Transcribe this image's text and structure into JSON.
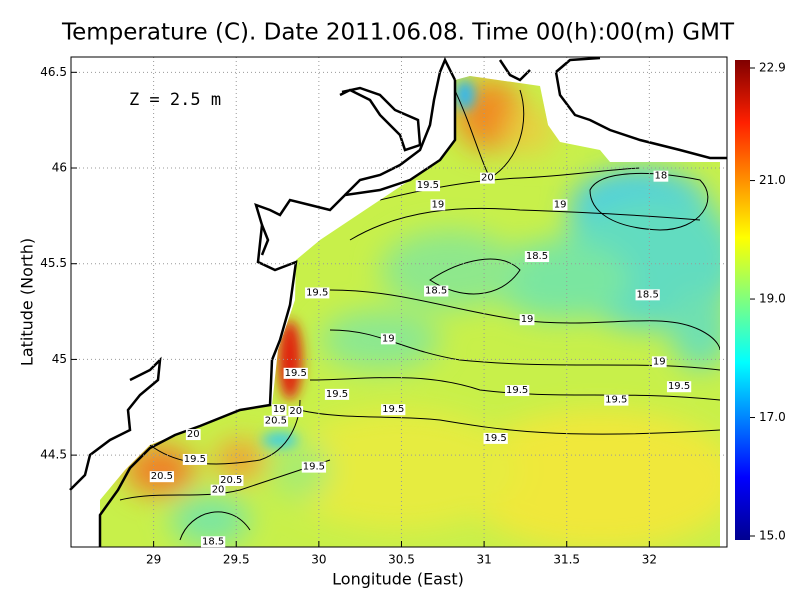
{
  "chart_data": {
    "type": "map",
    "title": "Temperature (C). Date 2011.06.08. Time 00(h):00(m) GMT",
    "annotation": "Z = 2.5 m",
    "x_label": "Longitude (East)",
    "y_label": "Latitude (North)",
    "xlim": [
      28.5,
      32.47
    ],
    "ylim": [
      44.02,
      46.58
    ],
    "xticks": [
      29,
      29.5,
      30,
      30.5,
      31,
      31.5,
      32
    ],
    "yticks": [
      44.5,
      45,
      45.5,
      46,
      46.5
    ],
    "grid": true,
    "colorbar": {
      "clim": [
        15.0,
        22.9
      ],
      "ticks": [
        {
          "value": 22.9,
          "label": "22.9"
        },
        {
          "value": 21.0,
          "label": "21.0"
        },
        {
          "value": 19.0,
          "label": "19.0"
        },
        {
          "value": 17.0,
          "label": "17.0"
        },
        {
          "value": 15.0,
          "label": "15.0"
        }
      ]
    },
    "contour_labels": [
      {
        "value": 19.5,
        "lon": 30.66,
        "lat": 45.91
      },
      {
        "value": 20,
        "lon": 31.02,
        "lat": 45.95
      },
      {
        "value": 18,
        "lon": 32.07,
        "lat": 45.96
      },
      {
        "value": 19,
        "lon": 30.72,
        "lat": 45.81
      },
      {
        "value": 19,
        "lon": 31.46,
        "lat": 45.81
      },
      {
        "value": 18.5,
        "lon": 31.32,
        "lat": 45.54
      },
      {
        "value": 18.5,
        "lon": 30.71,
        "lat": 45.36
      },
      {
        "value": 18.5,
        "lon": 31.99,
        "lat": 45.34
      },
      {
        "value": 19.5,
        "lon": 29.99,
        "lat": 45.35
      },
      {
        "value": 19,
        "lon": 31.26,
        "lat": 45.21
      },
      {
        "value": 19,
        "lon": 30.42,
        "lat": 45.11
      },
      {
        "value": 19,
        "lon": 32.06,
        "lat": 44.99
      },
      {
        "value": 19.5,
        "lon": 29.86,
        "lat": 44.93
      },
      {
        "value": 19.5,
        "lon": 31.2,
        "lat": 44.84
      },
      {
        "value": 19.5,
        "lon": 32.18,
        "lat": 44.86
      },
      {
        "value": 19.5,
        "lon": 30.11,
        "lat": 44.82
      },
      {
        "value": 19.5,
        "lon": 31.8,
        "lat": 44.79
      },
      {
        "value": 19.5,
        "lon": 30.45,
        "lat": 44.74
      },
      {
        "value": 19,
        "lon": 29.76,
        "lat": 44.74
      },
      {
        "value": 20,
        "lon": 29.86,
        "lat": 44.73
      },
      {
        "value": 20.5,
        "lon": 29.74,
        "lat": 44.68
      },
      {
        "value": 20,
        "lon": 29.24,
        "lat": 44.61
      },
      {
        "value": 19.5,
        "lon": 31.07,
        "lat": 44.59
      },
      {
        "value": 19.5,
        "lon": 29.25,
        "lat": 44.48
      },
      {
        "value": 19.5,
        "lon": 29.97,
        "lat": 44.44
      },
      {
        "value": 20.5,
        "lon": 29.05,
        "lat": 44.39
      },
      {
        "value": 20.5,
        "lon": 29.47,
        "lat": 44.37
      },
      {
        "value": 20,
        "lon": 29.39,
        "lat": 44.32
      },
      {
        "value": 18.5,
        "lon": 29.36,
        "lat": 44.05
      }
    ]
  }
}
